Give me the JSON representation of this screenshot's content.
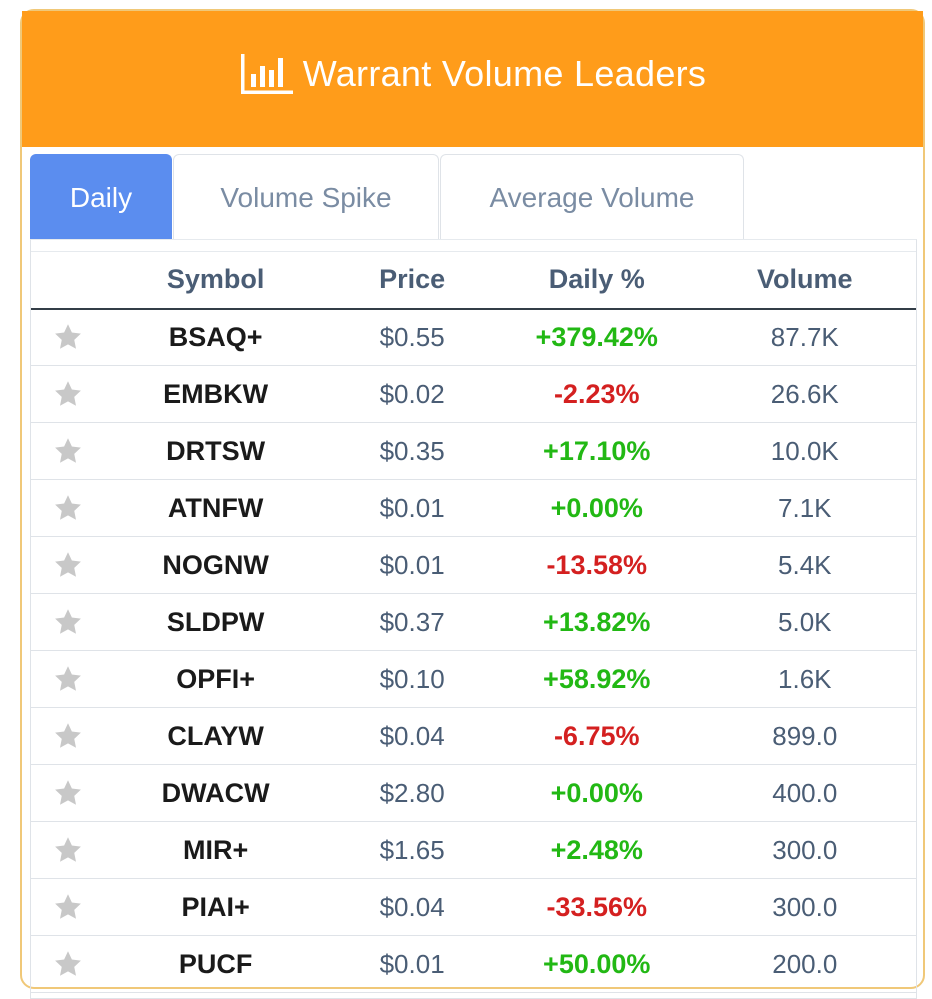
{
  "header": {
    "title": "Warrant Volume Leaders",
    "icon": "bar-chart-icon"
  },
  "tabs": [
    {
      "label": "Daily",
      "active": true
    },
    {
      "label": "Volume Spike",
      "active": false
    },
    {
      "label": "Average Volume",
      "active": false
    }
  ],
  "table": {
    "columns": [
      "",
      "Symbol",
      "Price",
      "Daily %",
      "Volume"
    ],
    "rows": [
      {
        "symbol": "BSAQ+",
        "price": "$0.55",
        "daily": "+379.42%",
        "dir": "pos",
        "volume": "87.7K"
      },
      {
        "symbol": "EMBKW",
        "price": "$0.02",
        "daily": "-2.23%",
        "dir": "neg",
        "volume": "26.6K"
      },
      {
        "symbol": "DRTSW",
        "price": "$0.35",
        "daily": "+17.10%",
        "dir": "pos",
        "volume": "10.0K"
      },
      {
        "symbol": "ATNFW",
        "price": "$0.01",
        "daily": "+0.00%",
        "dir": "pos",
        "volume": "7.1K"
      },
      {
        "symbol": "NOGNW",
        "price": "$0.01",
        "daily": "-13.58%",
        "dir": "neg",
        "volume": "5.4K"
      },
      {
        "symbol": "SLDPW",
        "price": "$0.37",
        "daily": "+13.82%",
        "dir": "pos",
        "volume": "5.0K"
      },
      {
        "symbol": "OPFI+",
        "price": "$0.10",
        "daily": "+58.92%",
        "dir": "pos",
        "volume": "1.6K"
      },
      {
        "symbol": "CLAYW",
        "price": "$0.04",
        "daily": "-6.75%",
        "dir": "neg",
        "volume": "899.0"
      },
      {
        "symbol": "DWACW",
        "price": "$2.80",
        "daily": "+0.00%",
        "dir": "pos",
        "volume": "400.0"
      },
      {
        "symbol": "MIR+",
        "price": "$1.65",
        "daily": "+2.48%",
        "dir": "pos",
        "volume": "300.0"
      },
      {
        "symbol": "PIAI+",
        "price": "$0.04",
        "daily": "-33.56%",
        "dir": "neg",
        "volume": "300.0"
      },
      {
        "symbol": "PUCF",
        "price": "$0.01",
        "daily": "+50.00%",
        "dir": "pos",
        "volume": "200.0"
      }
    ]
  },
  "colors": {
    "header_bg": "#ff9c1a",
    "tab_active": "#5b8def",
    "positive": "#22b814",
    "negative": "#d42020"
  }
}
